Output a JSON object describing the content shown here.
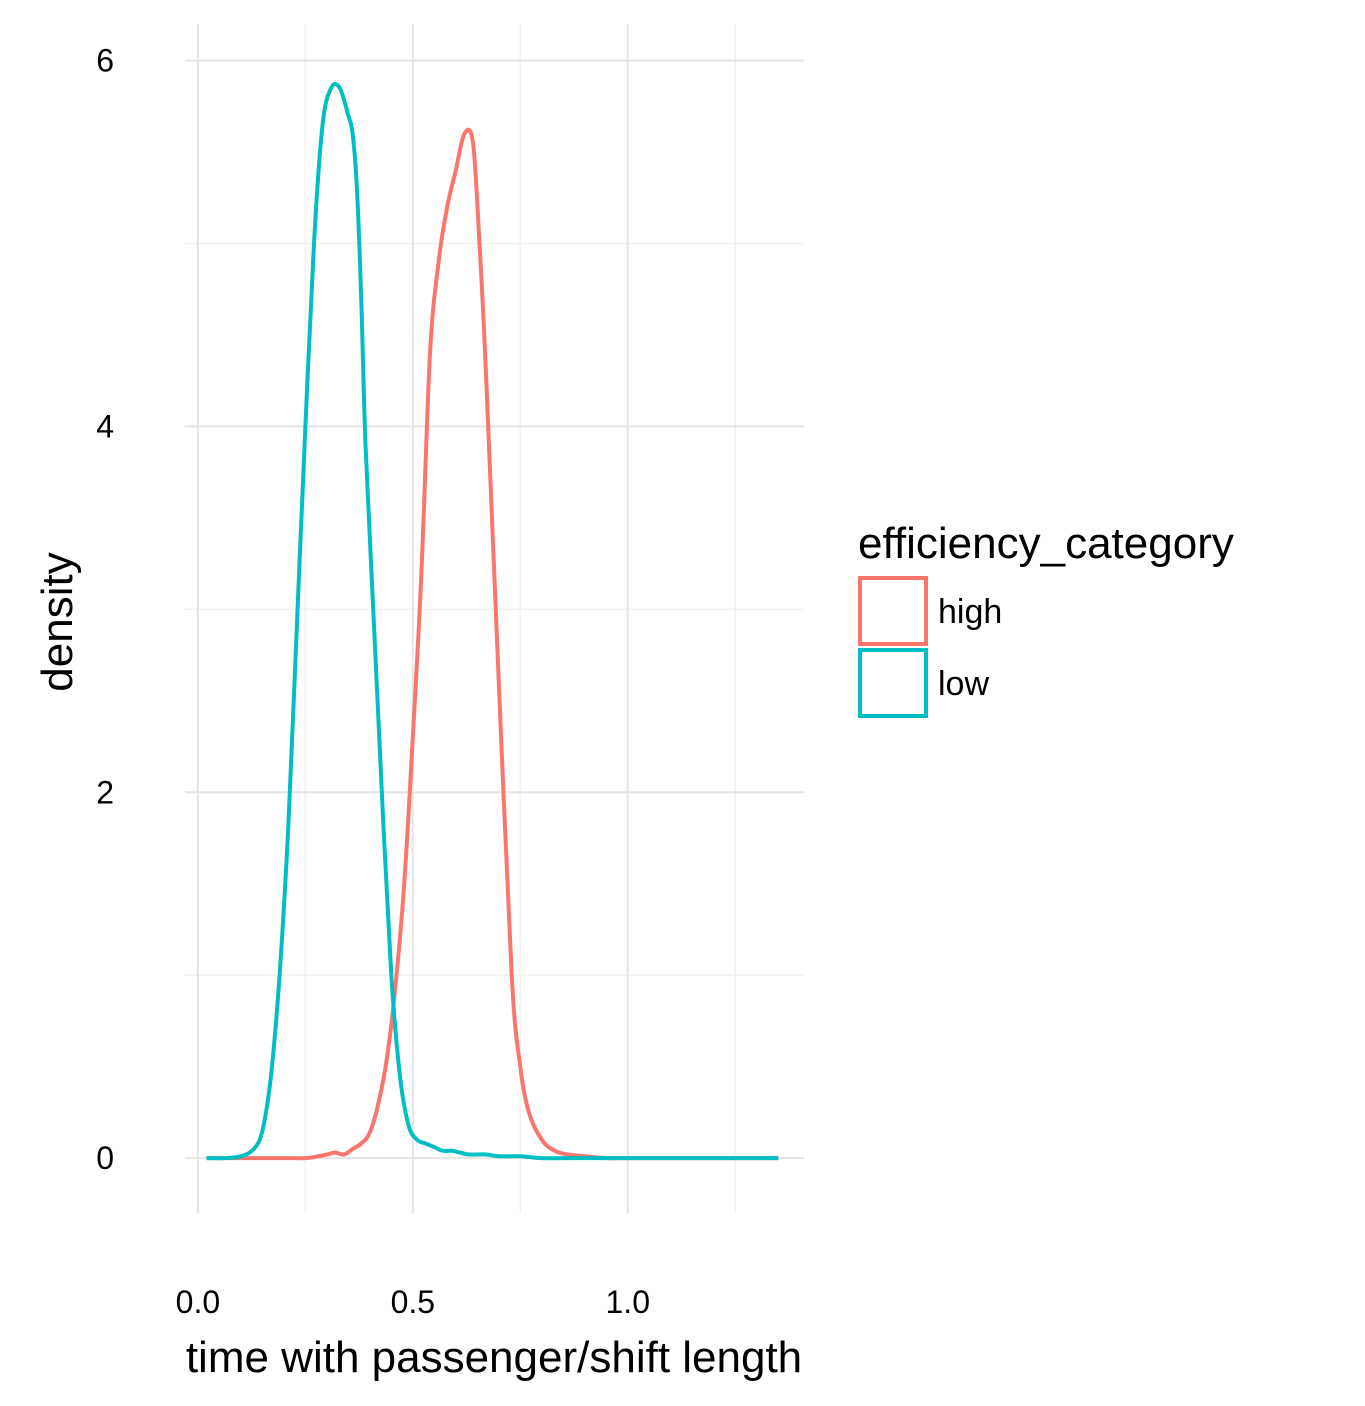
{
  "chart_data": {
    "type": "line",
    "subtype": "density",
    "title": "",
    "xlabel": "time with passenger/shift length",
    "ylabel": "density",
    "xlim": [
      -0.03,
      1.41
    ],
    "ylim": [
      -0.3,
      6.2
    ],
    "x_ticks": [
      {
        "value": 0.0,
        "label": "0.0"
      },
      {
        "value": 0.5,
        "label": "0.5"
      },
      {
        "value": 1.0,
        "label": "1.0"
      }
    ],
    "y_ticks": [
      {
        "value": 0,
        "label": "0"
      },
      {
        "value": 2,
        "label": "2"
      },
      {
        "value": 4,
        "label": "4"
      },
      {
        "value": 6,
        "label": "6"
      }
    ],
    "x_minor": [
      0.25,
      0.75,
      1.25
    ],
    "y_minor": [
      1,
      3,
      5
    ],
    "grid": true,
    "legend": {
      "title": "efficiency_category",
      "position": "right"
    },
    "series": [
      {
        "name": "high",
        "color": "#F8766D",
        "x": [
          0.02,
          0.1,
          0.2,
          0.25,
          0.28,
          0.3,
          0.32,
          0.34,
          0.36,
          0.38,
          0.4,
          0.42,
          0.44,
          0.46,
          0.48,
          0.5,
          0.52,
          0.54,
          0.56,
          0.58,
          0.6,
          0.62,
          0.64,
          0.655,
          0.67,
          0.7,
          0.73,
          0.75,
          0.77,
          0.8,
          0.83,
          0.86,
          0.9,
          0.95,
          1.0,
          1.1,
          1.2,
          1.35
        ],
        "y": [
          0.0,
          0.0,
          0.0,
          0.0,
          0.01,
          0.02,
          0.03,
          0.02,
          0.05,
          0.08,
          0.14,
          0.3,
          0.55,
          0.95,
          1.5,
          2.3,
          3.2,
          4.4,
          4.9,
          5.2,
          5.4,
          5.6,
          5.55,
          5.0,
          4.3,
          2.6,
          1.0,
          0.5,
          0.25,
          0.1,
          0.04,
          0.02,
          0.01,
          0.0,
          0.0,
          0.0,
          0.0,
          0.0
        ]
      },
      {
        "name": "low",
        "color": "#00BFC4",
        "x": [
          0.02,
          0.06,
          0.1,
          0.13,
          0.15,
          0.17,
          0.19,
          0.21,
          0.23,
          0.25,
          0.27,
          0.29,
          0.31,
          0.33,
          0.35,
          0.36,
          0.37,
          0.38,
          0.39,
          0.41,
          0.43,
          0.45,
          0.47,
          0.49,
          0.51,
          0.53,
          0.55,
          0.57,
          0.59,
          0.61,
          0.63,
          0.67,
          0.7,
          0.75,
          0.8,
          0.9,
          1.0,
          1.35
        ],
        "y": [
          0.0,
          0.0,
          0.01,
          0.05,
          0.15,
          0.45,
          1.0,
          1.8,
          2.9,
          4.0,
          5.0,
          5.65,
          5.85,
          5.85,
          5.7,
          5.6,
          5.3,
          4.7,
          3.9,
          2.9,
          1.9,
          1.0,
          0.45,
          0.18,
          0.1,
          0.08,
          0.06,
          0.04,
          0.04,
          0.03,
          0.02,
          0.02,
          0.01,
          0.01,
          0.0,
          0.0,
          0.0,
          0.0
        ]
      }
    ]
  }
}
